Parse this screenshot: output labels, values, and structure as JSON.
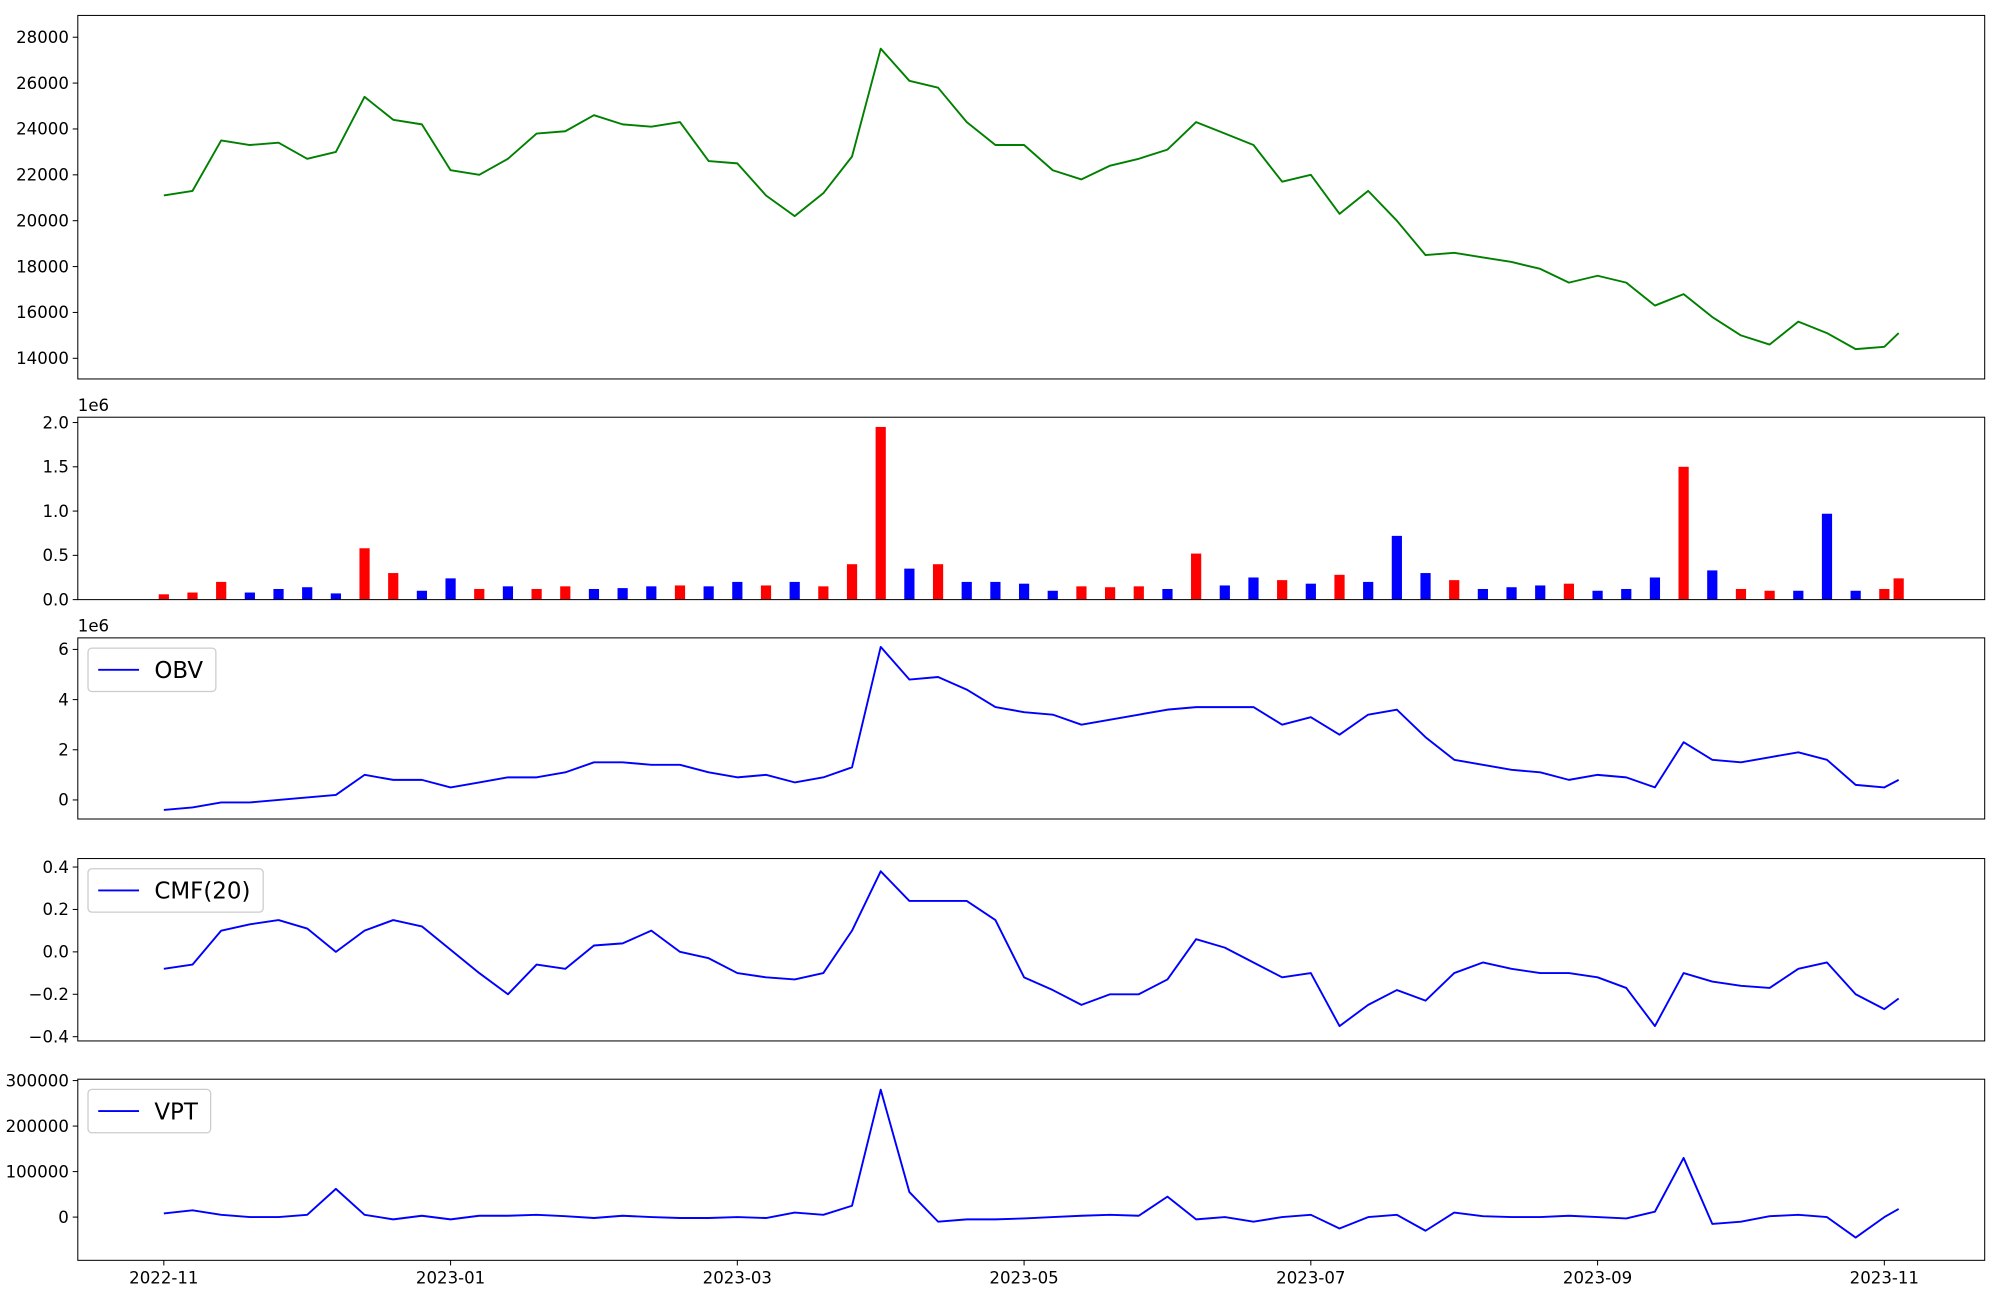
{
  "chart_data": [
    {
      "type": "line",
      "x": [
        0,
        0.2,
        0.4,
        0.6,
        0.8,
        1.0,
        1.2,
        1.4,
        1.6,
        1.8,
        2.0,
        2.2,
        2.4,
        2.6,
        2.8,
        3.0,
        3.2,
        3.4,
        3.6,
        3.8,
        4.0,
        4.2,
        4.4,
        4.6,
        4.8,
        5.0,
        5.2,
        5.4,
        5.6,
        5.8,
        6.0,
        6.2,
        6.4,
        6.6,
        6.8,
        7.0,
        7.2,
        7.4,
        7.6,
        7.8,
        8.0,
        8.2,
        8.4,
        8.6,
        8.8,
        9.0,
        9.2,
        9.4,
        9.6,
        9.8,
        10.0,
        10.2,
        10.4,
        10.6,
        10.8,
        11.0,
        11.2,
        11.4,
        11.6,
        11.8,
        12.0,
        12.1
      ],
      "series": [
        {
          "color": "#008000",
          "values": [
            21100,
            21300,
            23500,
            23300,
            23400,
            22700,
            23000,
            25400,
            24400,
            24200,
            22200,
            22000,
            22700,
            23800,
            23900,
            24600,
            24200,
            24100,
            24300,
            22600,
            22500,
            21100,
            20200,
            21200,
            22800,
            27500,
            26100,
            25800,
            24300,
            23300,
            23300,
            22200,
            21800,
            22400,
            22700,
            23100,
            24300,
            23800,
            23300,
            21700,
            22000,
            20300,
            21300,
            20000,
            18500,
            18600,
            18400,
            18200,
            17900,
            17300,
            17600,
            17300,
            16300,
            16800,
            15800,
            15000,
            14600,
            15600,
            15100,
            14400,
            14500,
            15100
          ]
        }
      ],
      "xlim": [
        -0.6,
        12.7
      ],
      "ylim": [
        13100,
        28950
      ],
      "yticks": [
        14000,
        16000,
        18000,
        20000,
        22000,
        24000,
        26000,
        28000
      ]
    },
    {
      "type": "bar",
      "x": [
        0,
        0.2,
        0.4,
        0.6,
        0.8,
        1.0,
        1.2,
        1.4,
        1.6,
        1.8,
        2.0,
        2.2,
        2.4,
        2.6,
        2.8,
        3.0,
        3.2,
        3.4,
        3.6,
        3.8,
        4.0,
        4.2,
        4.4,
        4.6,
        4.8,
        5.0,
        5.2,
        5.4,
        5.6,
        5.8,
        6.0,
        6.2,
        6.4,
        6.6,
        6.8,
        7.0,
        7.2,
        7.4,
        7.6,
        7.8,
        8.0,
        8.2,
        8.4,
        8.6,
        8.8,
        9.0,
        9.2,
        9.4,
        9.6,
        9.8,
        10.0,
        10.2,
        10.4,
        10.6,
        10.8,
        11.0,
        11.2,
        11.4,
        11.6,
        11.8,
        12.0,
        12.1
      ],
      "values": [
        0.06,
        0.08,
        0.2,
        0.08,
        0.12,
        0.14,
        0.07,
        0.58,
        0.3,
        0.1,
        0.24,
        0.12,
        0.15,
        0.12,
        0.15,
        0.12,
        0.13,
        0.15,
        0.16,
        0.15,
        0.2,
        0.16,
        0.2,
        0.15,
        0.4,
        1.95,
        0.35,
        0.4,
        0.2,
        0.2,
        0.18,
        0.1,
        0.15,
        0.14,
        0.15,
        0.12,
        0.52,
        0.16,
        0.25,
        0.22,
        0.18,
        0.28,
        0.2,
        0.72,
        0.3,
        0.22,
        0.12,
        0.14,
        0.16,
        0.18,
        0.1,
        0.12,
        0.25,
        1.5,
        0.33,
        0.12,
        0.1,
        0.1,
        0.97,
        0.1,
        0.12,
        0.24
      ],
      "colors": [
        "#ff0000",
        "#ff0000",
        "#ff0000",
        "#0000ff",
        "#0000ff",
        "#0000ff",
        "#0000ff",
        "#ff0000",
        "#ff0000",
        "#0000ff",
        "#0000ff",
        "#ff0000",
        "#0000ff",
        "#ff0000",
        "#ff0000",
        "#0000ff",
        "#0000ff",
        "#0000ff",
        "#ff0000",
        "#0000ff",
        "#0000ff",
        "#ff0000",
        "#0000ff",
        "#ff0000",
        "#ff0000",
        "#ff0000",
        "#0000ff",
        "#ff0000",
        "#0000ff",
        "#0000ff",
        "#0000ff",
        "#0000ff",
        "#ff0000",
        "#ff0000",
        "#ff0000",
        "#0000ff",
        "#ff0000",
        "#0000ff",
        "#0000ff",
        "#ff0000",
        "#0000ff",
        "#ff0000",
        "#0000ff",
        "#0000ff",
        "#0000ff",
        "#ff0000",
        "#0000ff",
        "#0000ff",
        "#0000ff",
        "#ff0000",
        "#0000ff",
        "#0000ff",
        "#0000ff",
        "#ff0000",
        "#0000ff",
        "#ff0000",
        "#ff0000",
        "#0000ff",
        "#0000ff",
        "#0000ff",
        "#ff0000",
        "#ff0000"
      ],
      "xlim": [
        -0.6,
        12.7
      ],
      "ylim": [
        0,
        2.06
      ],
      "y_offset_label": "1e6",
      "yticks": [
        {
          "value": 0,
          "label": "0.0"
        },
        0.5,
        {
          "value": 1,
          "label": "1.0"
        },
        1.5,
        {
          "value": 2,
          "label": "2.0"
        }
      ]
    },
    {
      "type": "line",
      "x": [
        0,
        0.2,
        0.4,
        0.6,
        0.8,
        1.0,
        1.2,
        1.4,
        1.6,
        1.8,
        2.0,
        2.2,
        2.4,
        2.6,
        2.8,
        3.0,
        3.2,
        3.4,
        3.6,
        3.8,
        4.0,
        4.2,
        4.4,
        4.6,
        4.8,
        5.0,
        5.2,
        5.4,
        5.6,
        5.8,
        6.0,
        6.2,
        6.4,
        6.6,
        6.8,
        7.0,
        7.2,
        7.4,
        7.6,
        7.8,
        8.0,
        8.2,
        8.4,
        8.6,
        8.8,
        9.0,
        9.2,
        9.4,
        9.6,
        9.8,
        10.0,
        10.2,
        10.4,
        10.6,
        10.8,
        11.0,
        11.2,
        11.4,
        11.6,
        11.8,
        12.0,
        12.1
      ],
      "series": [
        {
          "name": "OBV",
          "color": "#0000ff",
          "values": [
            -0.4,
            -0.3,
            -0.1,
            -0.1,
            0.0,
            0.1,
            0.2,
            1.0,
            0.8,
            0.8,
            0.5,
            0.7,
            0.9,
            0.9,
            1.1,
            1.5,
            1.5,
            1.4,
            1.4,
            1.1,
            0.9,
            1.0,
            0.7,
            0.9,
            1.3,
            6.1,
            4.8,
            4.9,
            4.4,
            3.7,
            3.5,
            3.4,
            3.0,
            3.2,
            3.4,
            3.6,
            3.7,
            3.7,
            3.7,
            3.0,
            3.3,
            2.6,
            3.4,
            3.6,
            2.5,
            1.6,
            1.4,
            1.2,
            1.1,
            0.8,
            1.0,
            0.9,
            0.5,
            2.3,
            1.6,
            1.5,
            1.7,
            1.9,
            1.6,
            0.6,
            0.5,
            0.8
          ]
        }
      ],
      "xlim": [
        -0.6,
        12.7
      ],
      "ylim": [
        -0.76,
        6.46
      ],
      "y_offset_label": "1e6",
      "yticks": [
        0,
        2,
        4,
        6
      ],
      "legend": "upper left"
    },
    {
      "type": "line",
      "x": [
        0,
        0.2,
        0.4,
        0.6,
        0.8,
        1.0,
        1.2,
        1.4,
        1.6,
        1.8,
        2.0,
        2.2,
        2.4,
        2.6,
        2.8,
        3.0,
        3.2,
        3.4,
        3.6,
        3.8,
        4.0,
        4.2,
        4.4,
        4.6,
        4.8,
        5.0,
        5.2,
        5.4,
        5.6,
        5.8,
        6.0,
        6.2,
        6.4,
        6.6,
        6.8,
        7.0,
        7.2,
        7.4,
        7.6,
        7.8,
        8.0,
        8.2,
        8.4,
        8.6,
        8.8,
        9.0,
        9.2,
        9.4,
        9.6,
        9.8,
        10.0,
        10.2,
        10.4,
        10.6,
        10.8,
        11.0,
        11.2,
        11.4,
        11.6,
        11.8,
        12.0,
        12.1
      ],
      "series": [
        {
          "name": "CMF(20)",
          "color": "#0000ff",
          "values": [
            -0.08,
            -0.06,
            0.1,
            0.13,
            0.15,
            0.11,
            0.0,
            0.1,
            0.15,
            0.12,
            0.01,
            -0.1,
            -0.2,
            -0.06,
            -0.08,
            0.03,
            0.04,
            0.1,
            0.0,
            -0.03,
            -0.1,
            -0.12,
            -0.13,
            -0.1,
            0.1,
            0.38,
            0.24,
            0.24,
            0.24,
            0.15,
            -0.12,
            -0.18,
            -0.25,
            -0.2,
            -0.2,
            -0.13,
            0.06,
            0.02,
            -0.05,
            -0.12,
            -0.1,
            -0.35,
            -0.25,
            -0.18,
            -0.23,
            -0.1,
            -0.05,
            -0.08,
            -0.1,
            -0.1,
            -0.12,
            -0.17,
            -0.35,
            -0.1,
            -0.14,
            -0.16,
            -0.17,
            -0.08,
            -0.05,
            -0.2,
            -0.27,
            -0.22
          ]
        }
      ],
      "xlim": [
        -0.6,
        12.7
      ],
      "ylim": [
        -0.42,
        0.44
      ],
      "yticks": [
        {
          "value": -0.4,
          "label": "−0.4"
        },
        {
          "value": -0.2,
          "label": "−0.2"
        },
        {
          "value": 0,
          "label": "0.0"
        },
        0.2,
        0.4
      ],
      "legend": "upper left"
    },
    {
      "type": "line",
      "x": [
        0,
        0.2,
        0.4,
        0.6,
        0.8,
        1.0,
        1.2,
        1.4,
        1.6,
        1.8,
        2.0,
        2.2,
        2.4,
        2.6,
        2.8,
        3.0,
        3.2,
        3.4,
        3.6,
        3.8,
        4.0,
        4.2,
        4.4,
        4.6,
        4.8,
        5.0,
        5.2,
        5.4,
        5.6,
        5.8,
        6.0,
        6.2,
        6.4,
        6.6,
        6.8,
        7.0,
        7.2,
        7.4,
        7.6,
        7.8,
        8.0,
        8.2,
        8.4,
        8.6,
        8.8,
        9.0,
        9.2,
        9.4,
        9.6,
        9.8,
        10.0,
        10.2,
        10.4,
        10.6,
        10.8,
        11.0,
        11.2,
        11.4,
        11.6,
        11.8,
        12.0,
        12.1
      ],
      "series": [
        {
          "name": "VPT",
          "color": "#0000ff",
          "values": [
            8000,
            15000,
            5000,
            0,
            0,
            5000,
            62000,
            5000,
            -5000,
            3000,
            -5000,
            3000,
            3000,
            5000,
            2000,
            -2000,
            3000,
            0,
            -2000,
            -2000,
            0,
            -2000,
            10000,
            5000,
            25000,
            280000,
            55000,
            -10000,
            -5000,
            -5000,
            -3000,
            0,
            3000,
            5000,
            3000,
            45000,
            -5000,
            0,
            -10000,
            0,
            5000,
            -25000,
            0,
            5000,
            -30000,
            10000,
            2000,
            0,
            0,
            3000,
            0,
            -3000,
            12000,
            130000,
            -15000,
            -10000,
            2000,
            5000,
            0,
            -45000,
            0,
            18000
          ]
        }
      ],
      "xlim": [
        -0.6,
        12.7
      ],
      "ylim": [
        -95000,
        303000
      ],
      "yticks": [
        0,
        100000,
        200000,
        300000
      ],
      "legend": "upper left",
      "xticks": [
        {
          "value": 0,
          "label": "2022-11"
        },
        {
          "value": 2,
          "label": "2023-01"
        },
        {
          "value": 4,
          "label": "2023-03"
        },
        {
          "value": 6,
          "label": "2023-05"
        },
        {
          "value": 8,
          "label": "2023-07"
        },
        {
          "value": 10,
          "label": "2023-09"
        },
        {
          "value": 12,
          "label": "2023-11"
        }
      ]
    }
  ]
}
